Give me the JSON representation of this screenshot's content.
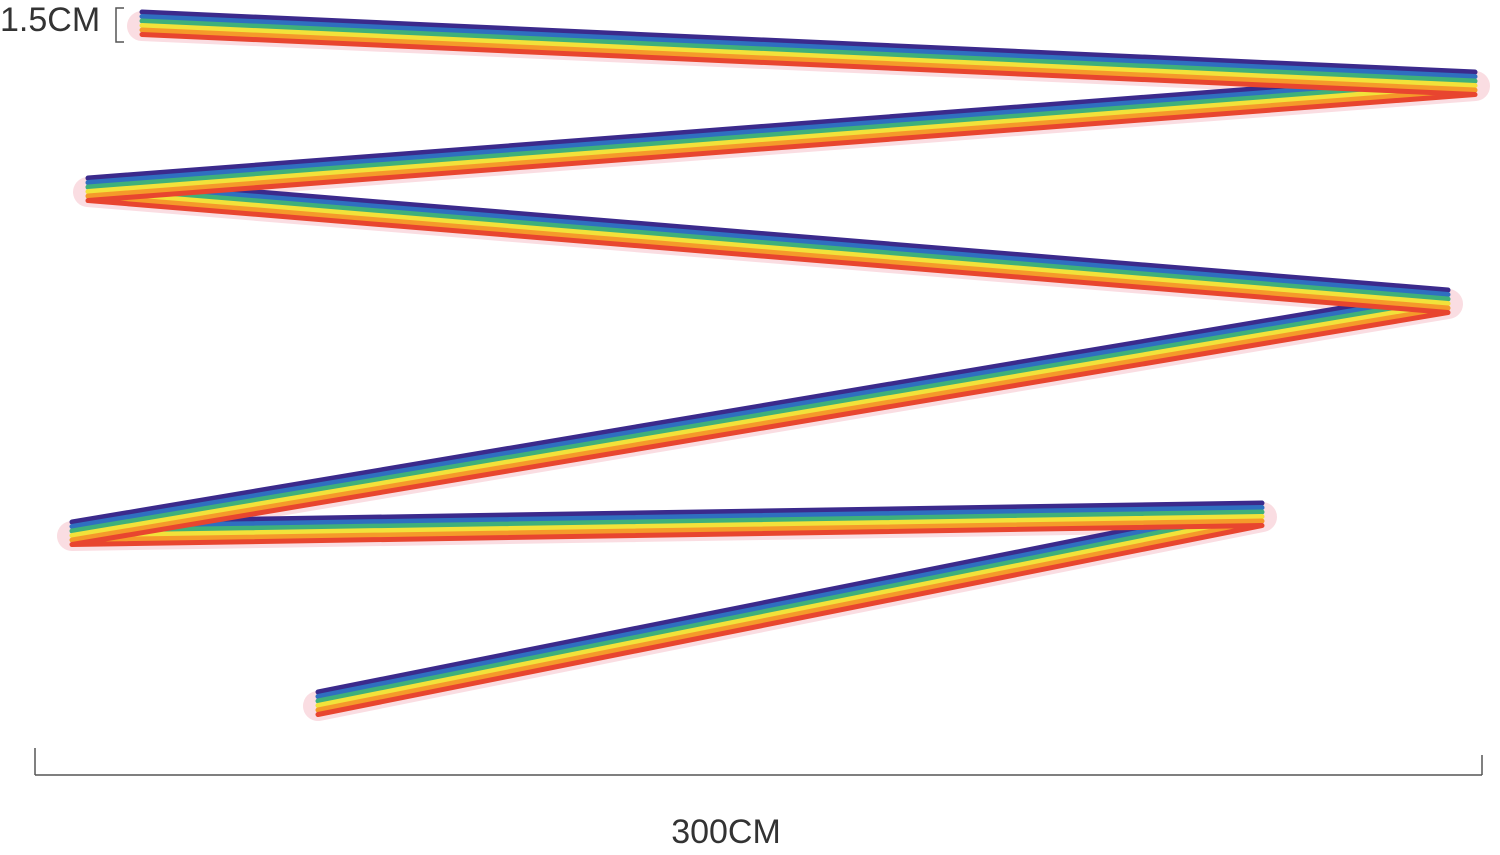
{
  "labels": {
    "width": "1.5CM",
    "length": "300CM"
  }
}
